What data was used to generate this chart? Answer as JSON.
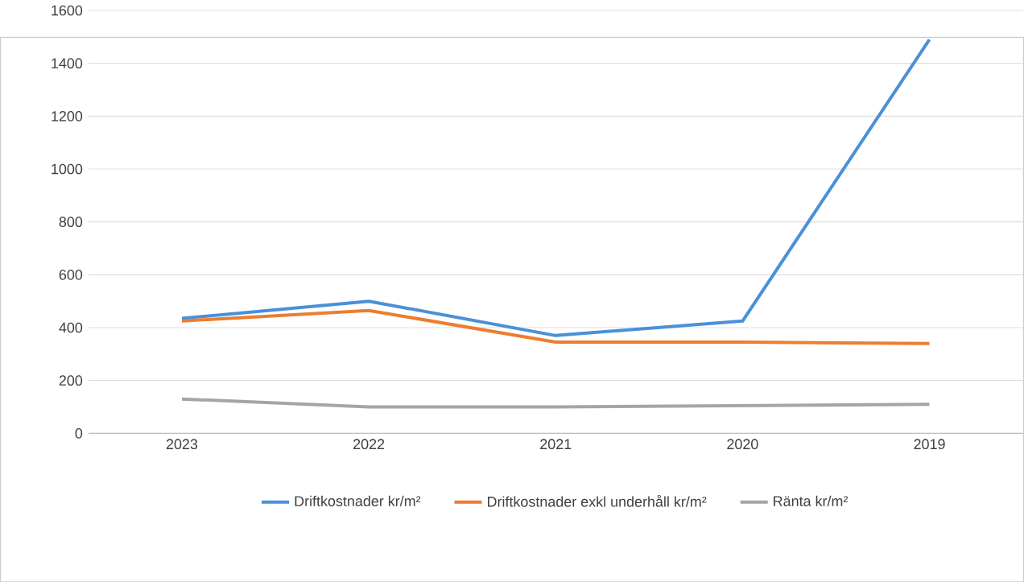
{
  "chart_data": {
    "type": "line",
    "categories": [
      "2023",
      "2022",
      "2021",
      "2020",
      "2019"
    ],
    "series": [
      {
        "name": "Driftkostnader kr/m²",
        "color": "#4a90d9",
        "values": [
          435,
          500,
          370,
          425,
          1490
        ]
      },
      {
        "name": "Driftkostnader exkl underhåll kr/m²",
        "color": "#ed7d31",
        "values": [
          425,
          465,
          345,
          345,
          340
        ]
      },
      {
        "name": "Ränta kr/m²",
        "color": "#a5a5a5",
        "values": [
          130,
          100,
          100,
          105,
          110
        ]
      }
    ],
    "ylim": [
      0,
      1600
    ],
    "yticks": [
      0,
      200,
      400,
      600,
      800,
      1000,
      1200,
      1400,
      1600
    ],
    "grid": "y",
    "legend": "bottom",
    "marker": "none",
    "line_style": "solid"
  }
}
